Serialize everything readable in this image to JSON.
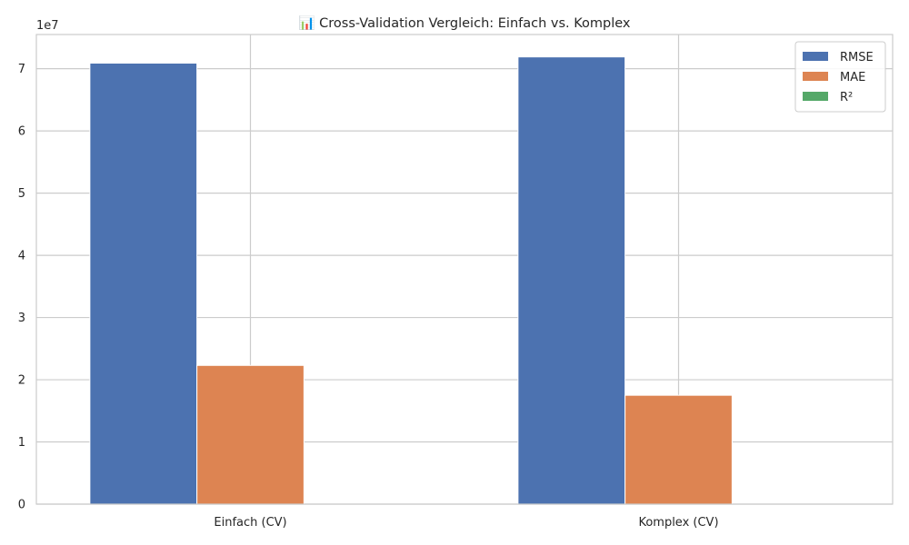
{
  "chart_data": {
    "type": "bar",
    "title": "📊 Cross-Validation Vergleich: Einfach vs. Komplex",
    "xlabel": "",
    "ylabel": "",
    "y_offset_label": "1e7",
    "categories": [
      "Einfach (CV)",
      "Komplex (CV)"
    ],
    "series": [
      {
        "name": "RMSE",
        "color": "#4c72b0",
        "values": [
          70900000,
          71900000
        ]
      },
      {
        "name": "MAE",
        "color": "#dd8452",
        "values": [
          22300000,
          17500000
        ]
      },
      {
        "name": "R²",
        "color": "#55a868",
        "values": [
          0.1,
          0.1
        ]
      }
    ],
    "ylim": [
      0,
      75500000
    ],
    "yticks": [
      0,
      10000000,
      20000000,
      30000000,
      40000000,
      50000000,
      60000000,
      70000000
    ],
    "ytick_labels": [
      "0",
      "1",
      "2",
      "3",
      "4",
      "5",
      "6",
      "7"
    ],
    "grid": true,
    "legend_position": "top-right"
  }
}
